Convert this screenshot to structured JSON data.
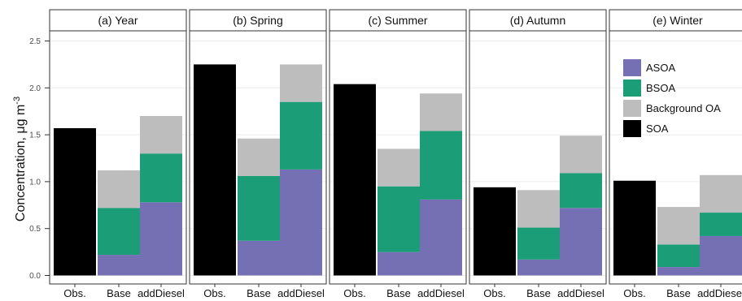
{
  "chart_data": {
    "type": "bar",
    "stacked": true,
    "ylabel": "Concentration, μg m",
    "ylabel_sup": "-3",
    "ylim": [
      0,
      2.6
    ],
    "yticks": [
      "0.0",
      "0.5",
      "1.0",
      "1.5",
      "2.0",
      "2.5"
    ],
    "ytick_values": [
      0,
      0.5,
      1.0,
      1.5,
      2.0,
      2.5
    ],
    "grid": true,
    "legend_position": "top-right",
    "categories": [
      "Obs.",
      "Base",
      "addDiesel"
    ],
    "facets": [
      {
        "title": "(a) Year",
        "series": [
          {
            "name": "ASOA",
            "values": [
              0,
              0.22,
              0.78
            ]
          },
          {
            "name": "BSOA",
            "values": [
              0,
              0.5,
              0.52
            ]
          },
          {
            "name": "Background OA",
            "values": [
              0,
              0.4,
              0.4
            ]
          },
          {
            "name": "SOA",
            "values": [
              1.57,
              0,
              0
            ]
          }
        ]
      },
      {
        "title": "(b) Spring",
        "series": [
          {
            "name": "ASOA",
            "values": [
              0,
              0.37,
              1.13
            ]
          },
          {
            "name": "BSOA",
            "values": [
              0,
              0.69,
              0.72
            ]
          },
          {
            "name": "Background OA",
            "values": [
              0,
              0.4,
              0.4
            ]
          },
          {
            "name": "SOA",
            "values": [
              2.25,
              0,
              0
            ]
          }
        ]
      },
      {
        "title": "(c) Summer",
        "series": [
          {
            "name": "ASOA",
            "values": [
              0,
              0.25,
              0.81
            ]
          },
          {
            "name": "BSOA",
            "values": [
              0,
              0.7,
              0.73
            ]
          },
          {
            "name": "Background OA",
            "values": [
              0,
              0.4,
              0.4
            ]
          },
          {
            "name": "SOA",
            "values": [
              2.04,
              0,
              0
            ]
          }
        ]
      },
      {
        "title": "(d) Autumn",
        "series": [
          {
            "name": "ASOA",
            "values": [
              0,
              0.17,
              0.72
            ]
          },
          {
            "name": "BSOA",
            "values": [
              0,
              0.34,
              0.37
            ]
          },
          {
            "name": "Background OA",
            "values": [
              0,
              0.4,
              0.4
            ]
          },
          {
            "name": "SOA",
            "values": [
              0.94,
              0,
              0
            ]
          }
        ]
      },
      {
        "title": "(e) Winter",
        "series": [
          {
            "name": "ASOA",
            "values": [
              0,
              0.09,
              0.42
            ]
          },
          {
            "name": "BSOA",
            "values": [
              0,
              0.24,
              0.25
            ]
          },
          {
            "name": "Background OA",
            "values": [
              0,
              0.4,
              0.4
            ]
          },
          {
            "name": "SOA",
            "values": [
              1.01,
              0,
              0
            ]
          }
        ]
      }
    ],
    "legend": [
      {
        "name": "ASOA",
        "color": "#7570b3"
      },
      {
        "name": "BSOA",
        "color": "#1b9e77"
      },
      {
        "name": "Background OA",
        "color": "#bdbdbd"
      },
      {
        "name": "SOA",
        "color": "#000000"
      }
    ]
  }
}
